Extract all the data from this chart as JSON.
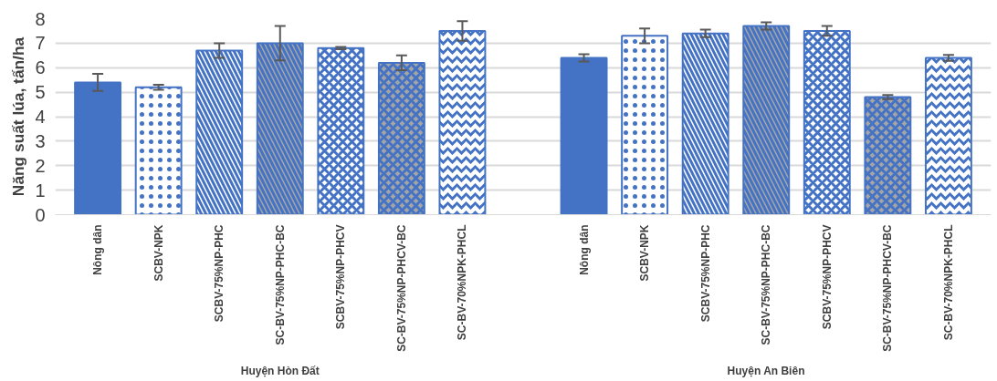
{
  "chart_data": {
    "type": "bar",
    "ylabel": "Năng suất lúa, tấn/ha",
    "categories": [
      "Nông dân",
      "SCBV-NPK",
      "SCBV-75%NP-PHC",
      "SC-BV-75%NP-PHC-BC",
      "SCBV-75%NP-PHCV",
      "SC-BV-75%NP-PHCV-BC",
      "SC-BV-70%NPK-PHCL",
      null,
      "Nông dân",
      "SCBV-NPK",
      "SCBV-75%NP-PHC",
      "SC-BV-75%NP-PHC-BC",
      "SCBV-75%NP-PHCV",
      "SC-BV-75%NP-PHCV-BC",
      "SC-BV-70%NPK-PHCL"
    ],
    "values": [
      5.4,
      5.2,
      6.7,
      7.0,
      6.8,
      6.2,
      7.5,
      null,
      6.4,
      7.3,
      7.4,
      7.7,
      7.5,
      4.8,
      6.4
    ],
    "errors": [
      0.35,
      0.1,
      0.3,
      0.7,
      0.05,
      0.3,
      0.4,
      null,
      0.15,
      0.3,
      0.15,
      0.15,
      0.2,
      0.08,
      0.12
    ],
    "colors": [
      "#4472c4",
      "#ffffff",
      "#ffffff",
      "#a5a5a5",
      "#ffffff",
      "#a5a5a5",
      "#ffffff",
      null,
      "#4472c4",
      "#ffffff",
      "#ffffff",
      "#a5a5a5",
      "#ffffff",
      "#a5a5a5",
      "#ffffff"
    ],
    "annotations": [
      "Huyện Hòn Đất",
      "Huyện An Biên"
    ],
    "ylim": [
      0,
      8
    ],
    "yticks": [
      0,
      1,
      2,
      3,
      4,
      5,
      6,
      7,
      8
    ],
    "grid": "y"
  }
}
